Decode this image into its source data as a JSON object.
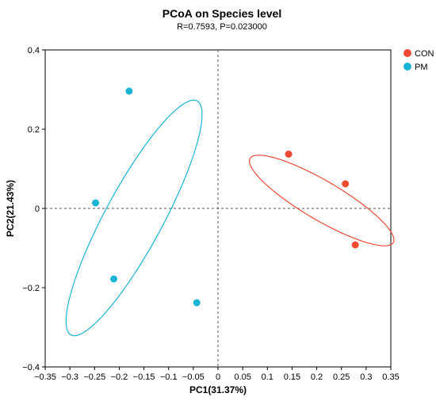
{
  "chart_data": {
    "type": "scatter",
    "title": "PCoA on Species level",
    "subtitle": "R=0.7593, P=0.023000",
    "xlabel": "PC1(31.37%)",
    "ylabel": "PC2(21.43%)",
    "xlim": [
      -0.35,
      0.35
    ],
    "ylim": [
      -0.4,
      0.4
    ],
    "xticks": [
      -0.35,
      -0.3,
      -0.25,
      -0.2,
      -0.15,
      -0.1,
      -0.05,
      0,
      0.05,
      0.1,
      0.15,
      0.2,
      0.25,
      0.3,
      0.35
    ],
    "xtick_labels": [
      "−0.35",
      "−0.3",
      "−0.25",
      "−0.2",
      "−0.15",
      "−0.1",
      "−0.05",
      "0",
      "0.05",
      "0.1",
      "0.15",
      "0.2",
      "0.25",
      "0.3",
      "0.35"
    ],
    "yticks": [
      -0.4,
      -0.2,
      0,
      0.2,
      0.4
    ],
    "ytick_labels": [
      "−0.4",
      "−0.2",
      "0",
      "0.2",
      "0.4"
    ],
    "grid": false,
    "reference_lines": {
      "x": 0,
      "y": 0,
      "style": "dashed"
    },
    "legend_position": "top-right",
    "series": [
      {
        "name": "CON",
        "color": "#f04a35",
        "points": [
          [
            0.143,
            0.137
          ],
          [
            0.258,
            0.062
          ],
          [
            0.278,
            -0.092
          ]
        ],
        "ellipse": {
          "center": [
            0.21,
            0.02
          ],
          "semi_axes": [
            0.18,
            0.046
          ],
          "angle_deg": -37
        }
      },
      {
        "name": "PM",
        "color": "#1ab4d4",
        "points": [
          [
            -0.18,
            0.296
          ],
          [
            -0.248,
            0.014
          ],
          [
            -0.211,
            -0.178
          ],
          [
            -0.043,
            -0.238
          ]
        ],
        "ellipse": {
          "center": [
            -0.17,
            -0.024
          ],
          "semi_axes": [
            0.322,
            0.061
          ],
          "angle_deg": 67
        }
      }
    ]
  }
}
